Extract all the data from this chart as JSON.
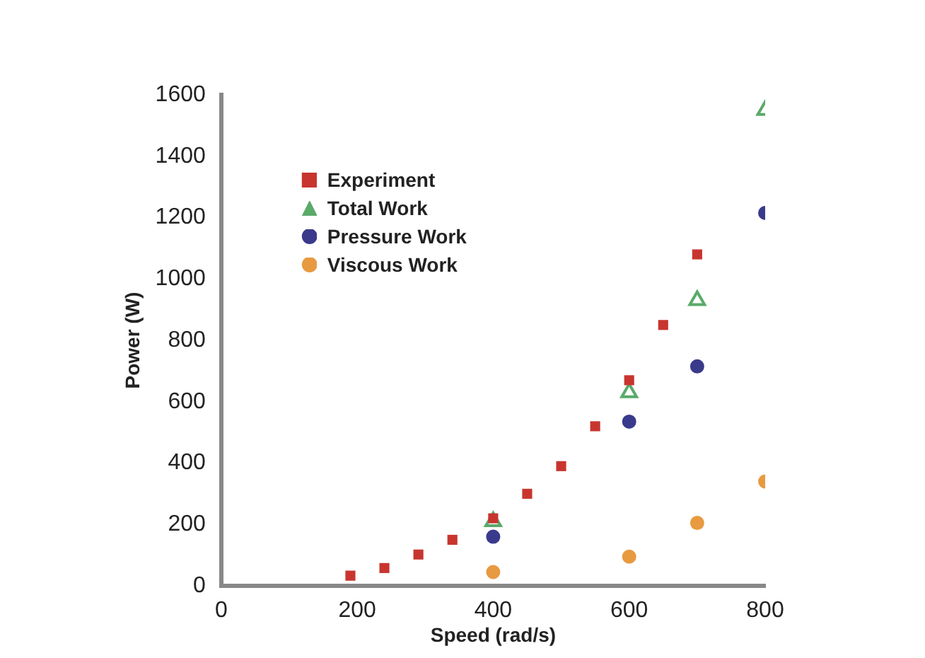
{
  "chart_data": {
    "type": "scatter",
    "xlabel": "Speed (rad/s)",
    "ylabel": "Power (W)",
    "xlim": [
      0,
      800
    ],
    "xticks": [
      0,
      200,
      400,
      600,
      800
    ],
    "ylim": [
      0,
      1600
    ],
    "yticks": [
      0,
      200,
      400,
      600,
      800,
      1000,
      1200,
      1400,
      1600
    ],
    "grid": false,
    "legend": "top left",
    "series": [
      {
        "name": "Experiment",
        "color": "#c8352f",
        "marker": "square",
        "x": [
          190,
          240,
          290,
          340,
          400,
          450,
          500,
          550,
          600,
          650,
          700
        ],
        "values": [
          33,
          58,
          102,
          150,
          220,
          300,
          390,
          520,
          670,
          850,
          1080
        ]
      },
      {
        "name": "Total Work",
        "color": "#5aaa6a",
        "marker": "triangle",
        "x": [
          400,
          600,
          700,
          800
        ],
        "values": [
          210,
          630,
          930,
          1550
        ]
      },
      {
        "name": "Pressure Work",
        "color": "#3a3a8c",
        "marker": "circle",
        "x": [
          400,
          600,
          700,
          800
        ],
        "values": [
          160,
          535,
          715,
          1215
        ]
      },
      {
        "name": "Viscous Work",
        "color": "#e89a40",
        "marker": "circle",
        "x": [
          400,
          600,
          700,
          800
        ],
        "values": [
          45,
          95,
          205,
          340
        ]
      }
    ]
  }
}
